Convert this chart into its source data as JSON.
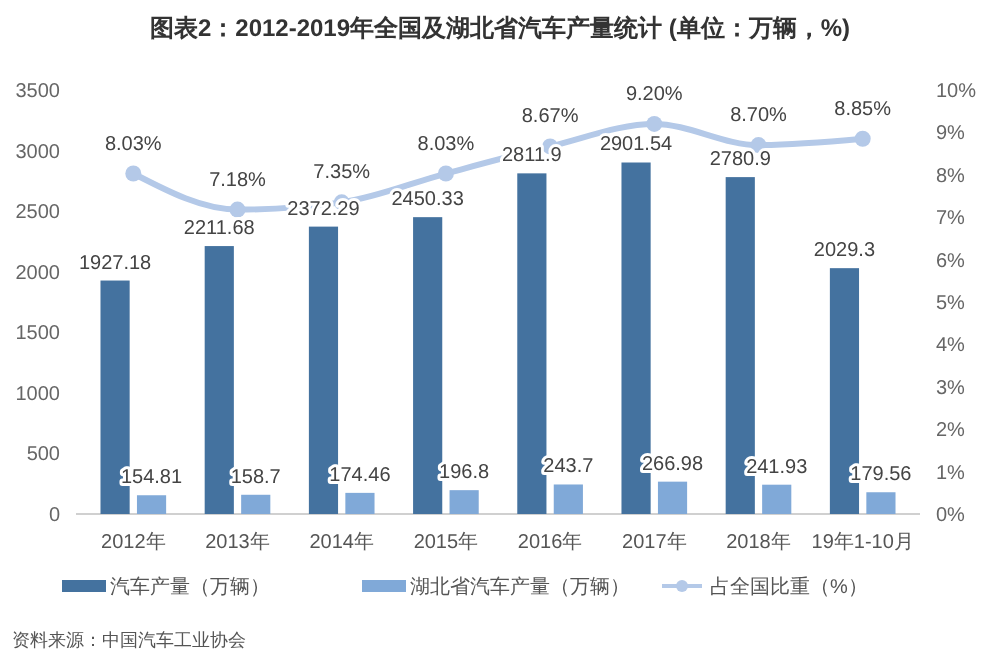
{
  "chart_data": {
    "type": "bar",
    "title": "图表2：2012-2019年全国及湖北省汽车产量统计 (单位：万辆，%)",
    "categories": [
      "2012年",
      "2013年",
      "2014年",
      "2015年",
      "2016年",
      "2017年",
      "2018年",
      "19年1-10月"
    ],
    "series": [
      {
        "name": "汽车产量（万辆）",
        "color": "#44729f",
        "values": [
          1927.18,
          2211.68,
          2372.29,
          2450.33,
          2811.9,
          2901.54,
          2780.9,
          2029.3
        ],
        "value_labels": [
          "1927.18",
          "2211.68",
          "2372.29",
          "2450.33",
          "2811.9",
          "2901.54",
          "2780.9",
          "2029.3"
        ]
      },
      {
        "name": "湖北省汽车产量（万辆）",
        "color": "#80a9d8",
        "values": [
          154.81,
          158.7,
          174.46,
          196.8,
          243.7,
          266.98,
          241.93,
          179.56
        ],
        "value_labels": [
          "154.81",
          "158.7",
          "174.46",
          "196.8",
          "243.7",
          "266.98",
          "241.93",
          "179.56"
        ]
      },
      {
        "name": "占全国比重（%）",
        "type": "line",
        "axis": "y2",
        "color": "#b4c9e8",
        "values": [
          8.03,
          7.18,
          7.35,
          8.03,
          8.67,
          9.2,
          8.7,
          8.85
        ],
        "value_labels": [
          "8.03%",
          "7.18%",
          "7.35%",
          "8.03%",
          "8.67%",
          "9.20%",
          "8.70%",
          "8.85%"
        ]
      }
    ],
    "ylim": [
      0,
      3500
    ],
    "yticks": [
      0,
      500,
      1000,
      1500,
      2000,
      2500,
      3000,
      3500
    ],
    "y2lim": [
      0,
      10
    ],
    "y2ticks": [
      {
        "value": 0,
        "label": "0%"
      },
      {
        "value": 1,
        "label": "1%"
      },
      {
        "value": 2,
        "label": "2%"
      },
      {
        "value": 3,
        "label": "3%"
      },
      {
        "value": 4,
        "label": "4%"
      },
      {
        "value": 5,
        "label": "5%"
      },
      {
        "value": 6,
        "label": "6%"
      },
      {
        "value": 7,
        "label": "7%"
      },
      {
        "value": 8,
        "label": "8%"
      },
      {
        "value": 9,
        "label": "9%"
      },
      {
        "value": 10,
        "label": "10%"
      }
    ],
    "marker": "circle",
    "legend": "bottom",
    "grid": false,
    "annotations": [
      "资料来源：中国汽车工业协会"
    ]
  }
}
